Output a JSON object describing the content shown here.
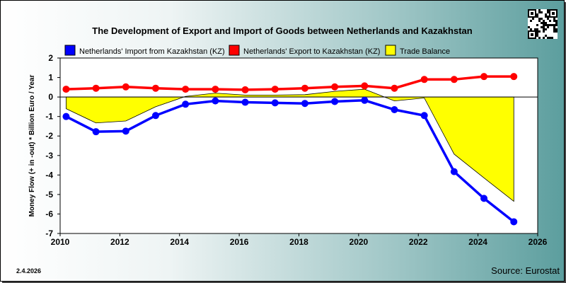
{
  "chart_data": {
    "type": "line",
    "title": "The Development of Export and Import of Goods between Netherlands and Kazakhstan",
    "ylabel": "Money Flow (+ in -out) * Billion Euro / Year",
    "xlabel": "",
    "xlim": [
      2010,
      2026
    ],
    "ylim": [
      -7,
      2
    ],
    "x_ticks": [
      "2010",
      "2012",
      "2014",
      "2016",
      "2018",
      "2020",
      "2022",
      "2024",
      "2026"
    ],
    "y_ticks": [
      "2",
      "1",
      "0",
      "-1",
      "-2",
      "-3",
      "-4",
      "-5",
      "-6",
      "-7"
    ],
    "x": [
      2010.2,
      2011.2,
      2012.2,
      2013.2,
      2014.2,
      2015.2,
      2016.2,
      2017.2,
      2018.2,
      2019.2,
      2020.2,
      2021.2,
      2022.2,
      2023.2,
      2024.2,
      2025.2
    ],
    "series": [
      {
        "name": "Netherlands' Import from Kazakhstan (KZ)",
        "color": "#0000ff",
        "values": [
          -1.0,
          -1.78,
          -1.75,
          -0.95,
          -0.37,
          -0.2,
          -0.27,
          -0.3,
          -0.33,
          -0.23,
          -0.17,
          -0.65,
          -0.95,
          -3.83,
          -5.2,
          -6.4
        ]
      },
      {
        "name": "Netherlands' Export to Kazakhstan (KZ)",
        "color": "#ff0000",
        "values": [
          0.4,
          0.45,
          0.52,
          0.45,
          0.4,
          0.4,
          0.37,
          0.4,
          0.45,
          0.52,
          0.57,
          0.45,
          0.9,
          0.9,
          1.05,
          1.05
        ]
      },
      {
        "name": "Trade Balance",
        "color": "#ffff00",
        "type": "area",
        "values": [
          -0.6,
          -1.33,
          -1.23,
          -0.5,
          0.03,
          0.2,
          0.1,
          0.1,
          0.12,
          0.29,
          0.4,
          -0.2,
          -0.05,
          -2.93,
          -4.15,
          -5.35
        ]
      }
    ],
    "legend": "top",
    "grid": false,
    "date_label": "2.4.2026",
    "source": "Source: Eurostat"
  }
}
